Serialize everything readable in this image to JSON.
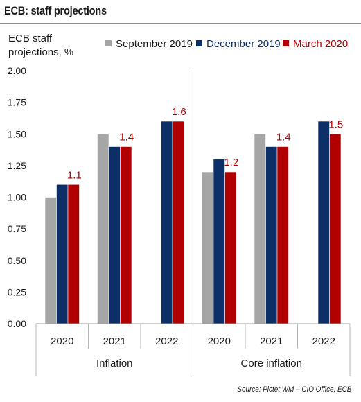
{
  "title": "ECB: staff projections",
  "source": "Source: Pictet WM – CIO Office, ECB",
  "chart_data": {
    "type": "bar",
    "ylabel": "ECB staff projections, %",
    "ylim": [
      0,
      2
    ],
    "yticks": [
      "0.00",
      "0.25",
      "0.50",
      "0.75",
      "1.00",
      "1.25",
      "1.50",
      "1.75",
      "2.00"
    ],
    "grid": false,
    "legend_position": "top",
    "groups": [
      {
        "label": "Inflation",
        "categories": [
          "2020",
          "2021",
          "2022"
        ]
      },
      {
        "label": "Core inflation",
        "categories": [
          "2020",
          "2021",
          "2022"
        ]
      }
    ],
    "series": [
      {
        "name": "September 2019",
        "color": "#a6a6a6",
        "values": [
          1.0,
          1.5,
          null,
          1.2,
          1.5,
          null
        ]
      },
      {
        "name": "December 2019",
        "color": "#0b2f66",
        "values": [
          1.1,
          1.4,
          1.6,
          1.3,
          1.4,
          1.6
        ]
      },
      {
        "name": "March 2020",
        "color": "#b00000",
        "values": [
          1.1,
          1.4,
          1.6,
          1.2,
          1.4,
          1.5
        ]
      }
    ],
    "data_labels": [
      "1.1",
      "1.4",
      "1.6",
      "1.2",
      "1.4",
      "1.5"
    ],
    "data_label_color": "#b00000"
  }
}
